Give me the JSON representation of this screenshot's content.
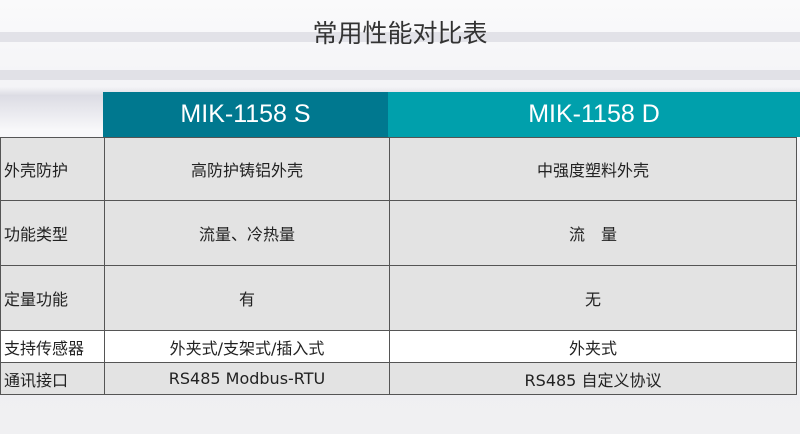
{
  "title": "常用性能对比表",
  "colors": {
    "model_s": "#00788f",
    "model_d": "#00a0ac"
  },
  "headers": [
    "MIK-1158 S",
    "MIK-1158 D"
  ],
  "rows": [
    {
      "label": "外壳防护",
      "s": "高防护铸铝外壳",
      "d": "中强度塑料外壳"
    },
    {
      "label": "功能类型",
      "s": "流量、冷热量",
      "d": "流　量"
    },
    {
      "label": "定量功能",
      "s": "有",
      "d": "无"
    },
    {
      "label": "支持传感器",
      "s": "外夹式/支架式/插入式",
      "d": "外夹式"
    },
    {
      "label": "通讯接口",
      "s": "RS485 Modbus-RTU",
      "d": "RS485 自定义协议"
    }
  ]
}
